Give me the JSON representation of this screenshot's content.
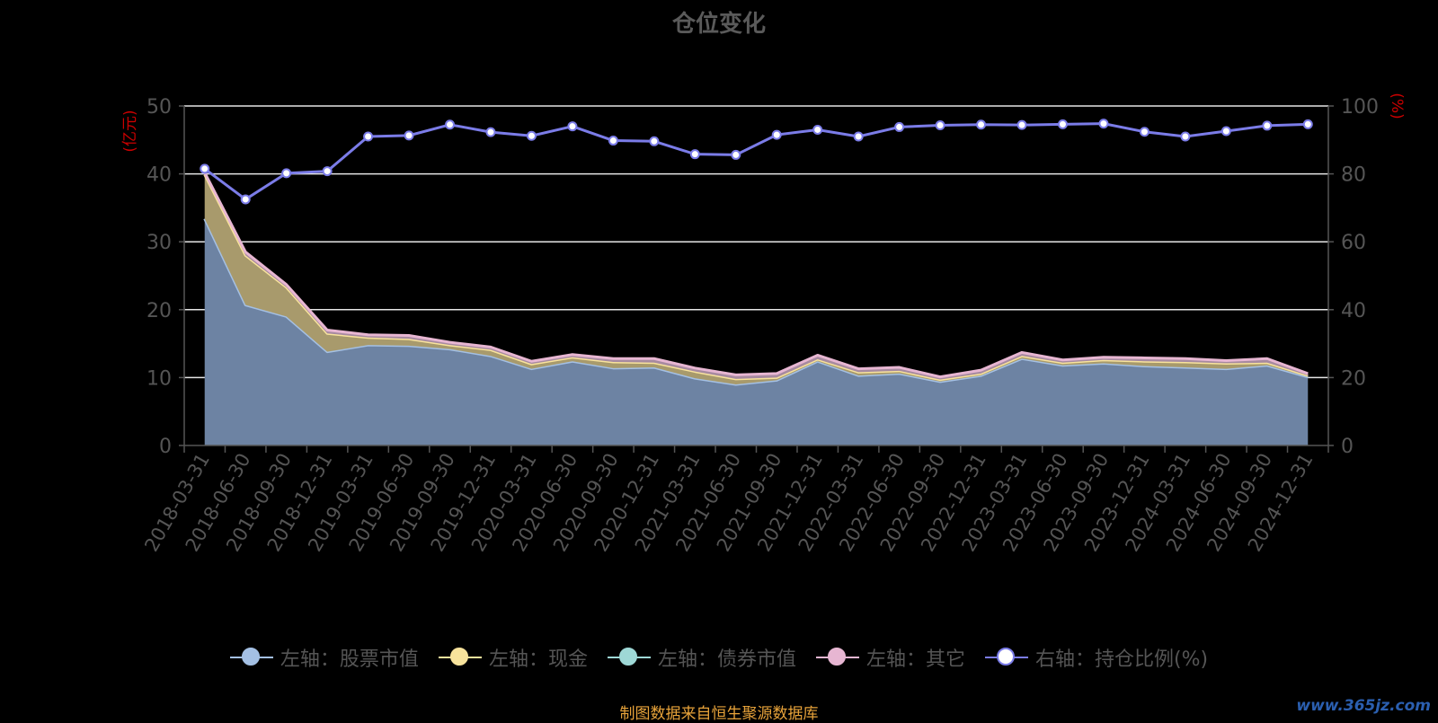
{
  "chart_data": {
    "type": "area",
    "title": "仓位变化",
    "x": [
      "2018-03-31",
      "2018-06-30",
      "2018-09-30",
      "2018-12-31",
      "2019-03-31",
      "2019-06-30",
      "2019-09-30",
      "2019-12-31",
      "2020-03-31",
      "2020-06-30",
      "2020-09-30",
      "2020-12-31",
      "2021-03-31",
      "2021-06-30",
      "2021-09-30",
      "2021-12-31",
      "2022-03-31",
      "2022-06-30",
      "2022-09-30",
      "2022-12-31",
      "2023-03-31",
      "2023-06-30",
      "2023-09-30",
      "2023-12-31",
      "2024-03-31",
      "2024-06-30",
      "2024-09-30",
      "2024-12-31"
    ],
    "left_axis": {
      "label": "(亿元)",
      "ylim": [
        0,
        50
      ],
      "ticks": [
        "0",
        "10",
        "20",
        "30",
        "40",
        "50"
      ],
      "label_color": "#cc0000"
    },
    "right_axis": {
      "label": "(%)",
      "ylim": [
        0,
        100
      ],
      "ticks": [
        "0",
        "20",
        "40",
        "60",
        "80",
        "100"
      ],
      "label_color": "#cc0000"
    },
    "grid": true,
    "legend_position": "bottom",
    "series": [
      {
        "name": "左轴：股票市值",
        "axis": "left",
        "color": "#a4c0e4",
        "fill": "#6d83a3",
        "values": [
          33.4,
          20.7,
          19.0,
          13.8,
          14.8,
          14.7,
          14.2,
          13.2,
          11.3,
          12.4,
          11.4,
          11.5,
          9.9,
          9.0,
          9.6,
          12.4,
          10.3,
          10.6,
          9.4,
          10.3,
          12.8,
          11.8,
          12.1,
          11.7,
          11.5,
          11.3,
          11.8,
          10.1
        ]
      },
      {
        "name": "左轴：现金",
        "axis": "left",
        "color": "#f8e39c",
        "fill": "#a89a6c",
        "values": [
          6.5,
          7.3,
          4.3,
          2.7,
          1.1,
          1.0,
          0.6,
          0.9,
          0.7,
          0.6,
          0.9,
          0.7,
          1.0,
          0.8,
          0.4,
          0.3,
          0.5,
          0.4,
          0.3,
          0.3,
          0.4,
          0.4,
          0.5,
          0.7,
          0.8,
          0.8,
          0.4,
          0.2
        ]
      },
      {
        "name": "左轴：债券市值",
        "axis": "left",
        "color": "#9ed8d6",
        "fill": "#7aa6a4",
        "values": [
          0,
          0,
          0,
          0,
          0,
          0,
          0,
          0,
          0,
          0,
          0,
          0,
          0,
          0,
          0,
          0,
          0,
          0,
          0,
          0,
          0,
          0,
          0,
          0,
          0,
          0,
          0,
          0
        ]
      },
      {
        "name": "左轴：其它",
        "axis": "left",
        "color": "#e7b6d2",
        "fill": "#a78aa0",
        "values": [
          0.3,
          0.5,
          0.4,
          0.5,
          0.4,
          0.5,
          0.4,
          0.4,
          0.4,
          0.4,
          0.5,
          0.6,
          0.5,
          0.6,
          0.6,
          0.6,
          0.5,
          0.5,
          0.4,
          0.5,
          0.5,
          0.4,
          0.4,
          0.5,
          0.5,
          0.4,
          0.6,
          0.3
        ]
      },
      {
        "name": "右轴：持仓比例(%)",
        "axis": "right",
        "color": "#7b7ce8",
        "values": [
          81.5,
          72.5,
          80.2,
          80.8,
          91.0,
          91.3,
          94.5,
          92.3,
          91.2,
          94.0,
          89.8,
          89.6,
          85.8,
          85.6,
          91.5,
          93.0,
          91.0,
          93.8,
          94.3,
          94.5,
          94.4,
          94.6,
          94.8,
          92.4,
          91.0,
          92.6,
          94.2,
          94.6
        ]
      }
    ]
  },
  "source_text": "制图数据来自恒生聚源数据库",
  "watermark_text": "www.365jz.com"
}
